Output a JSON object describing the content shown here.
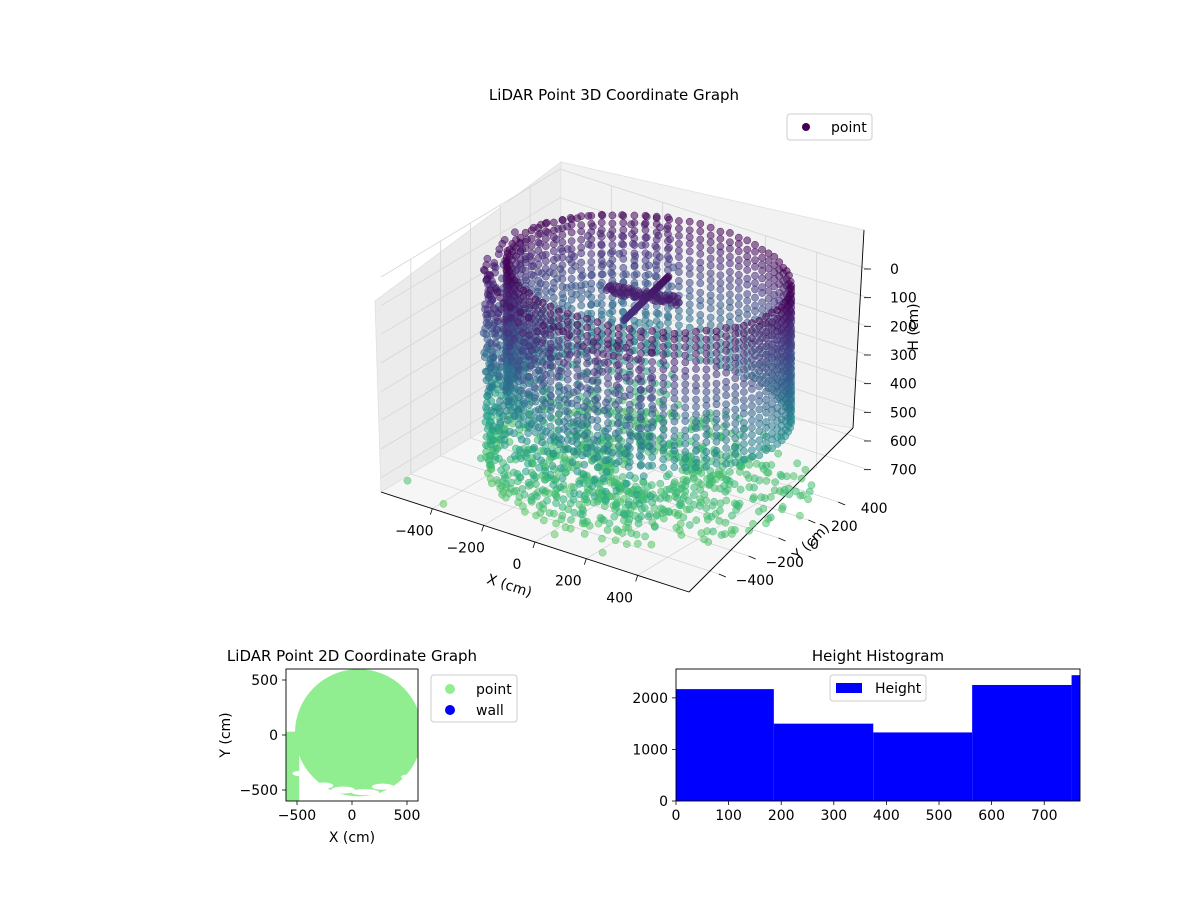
{
  "chart_data": [
    {
      "type": "scatter3d",
      "title": "LiDAR Point 3D Coordinate Graph",
      "xlabel": "X (cm)",
      "ylabel": "Y (cm)",
      "zlabel": "H (cm)",
      "x_ticks": [
        "−400",
        "−200",
        "0",
        "200",
        "400"
      ],
      "y_ticks": [
        "−400",
        "−200",
        "0",
        "200",
        "400"
      ],
      "z_ticks": [
        "0",
        "100",
        "200",
        "300",
        "400",
        "500",
        "600",
        "700"
      ],
      "xlim": [
        -600,
        600
      ],
      "ylim": [
        -600,
        600
      ],
      "zlim": [
        0,
        750
      ],
      "z_inverted": true,
      "colormap": "viridis",
      "legend": {
        "placement": "top-right",
        "label": "point",
        "color": "#440154"
      },
      "grid": true,
      "shape": {
        "rim_cylinder": {
          "center": [
            60,
            60
          ],
          "radius": 480,
          "h_range": [
            0,
            470
          ]
        },
        "front_arc_wall": {
          "center": [
            60,
            60
          ],
          "radius": 560,
          "h_range": [
            40,
            740
          ]
        },
        "cross_structure": {
          "center": [
            50,
            40
          ],
          "h_range": [
            0,
            150
          ]
        },
        "floor_h": 650
      }
    },
    {
      "type": "scatter",
      "title": "LiDAR Point 2D Coordinate Graph",
      "xlabel": "X (cm)",
      "ylabel": "Y (cm)",
      "x_ticks": [
        "−500",
        "0",
        "500"
      ],
      "y_ticks": [
        "−500",
        "0",
        "500"
      ],
      "xlim": [
        -600,
        600
      ],
      "ylim": [
        -600,
        600
      ],
      "series": [
        {
          "name": "point",
          "color": "#90ee90",
          "region": {
            "center": [
              0,
              0
            ],
            "radius": 560
          }
        },
        {
          "name": "wall",
          "color": "#0000ff"
        }
      ],
      "legend": {
        "placement": "outside-right"
      }
    },
    {
      "type": "bar",
      "title": "Height Histogram",
      "legend_label": "Height",
      "color": "#0000ff",
      "x_ticks": [
        "0",
        "100",
        "200",
        "300",
        "400",
        "500",
        "600",
        "700"
      ],
      "y_ticks": [
        "0",
        "1000",
        "2000"
      ],
      "xlim": [
        0,
        768
      ],
      "ylim": [
        0,
        2560
      ],
      "legend": {
        "placement": "top-center"
      },
      "bins": [
        {
          "x0": 0,
          "x1": 186,
          "count": 2170
        },
        {
          "x0": 186,
          "x1": 375,
          "count": 1500
        },
        {
          "x0": 375,
          "x1": 563,
          "count": 1330
        },
        {
          "x0": 563,
          "x1": 752,
          "count": 2250
        },
        {
          "x0": 752,
          "x1": 768,
          "count": 2440
        }
      ]
    }
  ]
}
